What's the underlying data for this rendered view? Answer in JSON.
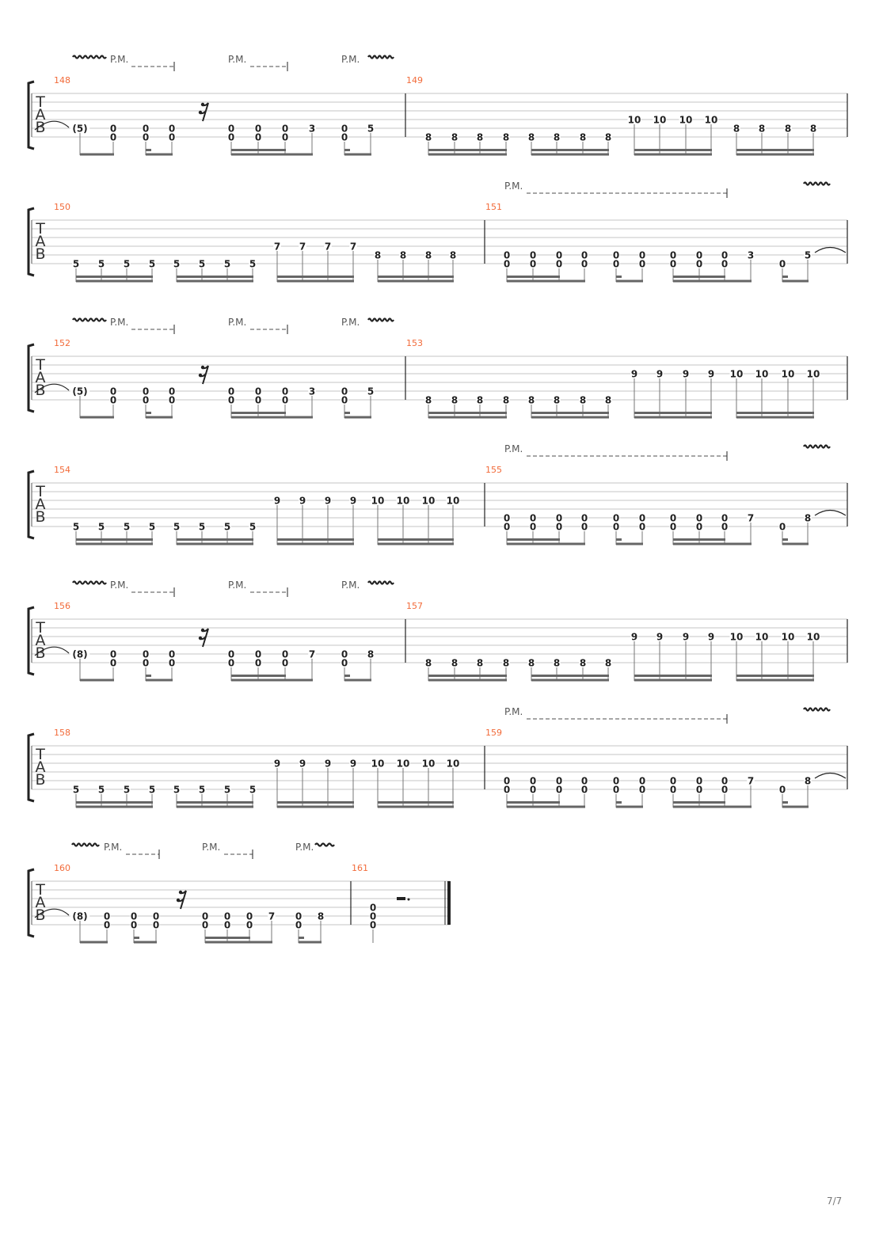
{
  "document": {
    "type": "guitar tablature",
    "page_number": "7/7"
  },
  "colors": {
    "measure_number": "#f26b3a",
    "staff_line": "#c4c4c4",
    "note": "#222222",
    "beam": "#666666"
  },
  "clef_letters": [
    "T",
    "A",
    "B"
  ],
  "annotation_label": "P.M.",
  "systems": [
    {
      "measures": [
        "148",
        "149"
      ]
    },
    {
      "measures": [
        "150",
        "151"
      ]
    },
    {
      "measures": [
        "152",
        "153"
      ]
    },
    {
      "measures": [
        "154",
        "155"
      ]
    },
    {
      "measures": [
        "156",
        "157"
      ]
    },
    {
      "measures": [
        "158",
        "159"
      ]
    },
    {
      "measures": [
        "160",
        "161"
      ]
    }
  ],
  "measures": {
    "148": [
      {
        "5": "(5)"
      },
      {
        "5": "0",
        "6": "0"
      },
      {
        "5": "0",
        "6": "0"
      },
      {
        "5": "0",
        "6": "0"
      },
      {
        "rest": "16th"
      },
      {
        "5": "0",
        "6": "0"
      },
      {
        "5": "0",
        "6": "0"
      },
      {
        "5": "0",
        "6": "0"
      },
      {
        "5": "3"
      },
      {
        "5": "0",
        "6": "0"
      },
      {
        "5": "5"
      }
    ],
    "149": [
      {
        "6": "8"
      },
      {
        "6": "8"
      },
      {
        "6": "8"
      },
      {
        "6": "8"
      },
      {
        "6": "8"
      },
      {
        "6": "8"
      },
      {
        "6": "8"
      },
      {
        "6": "8"
      },
      {
        "4": "10"
      },
      {
        "4": "10"
      },
      {
        "4": "10"
      },
      {
        "4": "10"
      },
      {
        "5": "8"
      },
      {
        "5": "8"
      },
      {
        "5": "8"
      },
      {
        "5": "8"
      }
    ],
    "150": [
      {
        "6": "5"
      },
      {
        "6": "5"
      },
      {
        "6": "5"
      },
      {
        "6": "5"
      },
      {
        "6": "5"
      },
      {
        "6": "5"
      },
      {
        "6": "5"
      },
      {
        "6": "5"
      },
      {
        "4": "7"
      },
      {
        "4": "7"
      },
      {
        "4": "7"
      },
      {
        "4": "7"
      },
      {
        "5": "8"
      },
      {
        "5": "8"
      },
      {
        "5": "8"
      },
      {
        "5": "8"
      }
    ],
    "151": [
      {
        "5": "0",
        "6": "0"
      },
      {
        "5": "0",
        "6": "0"
      },
      {
        "5": "0",
        "6": "0"
      },
      {
        "5": "0",
        "6": "0"
      },
      {
        "5": "0",
        "6": "0"
      },
      {
        "5": "0",
        "6": "0"
      },
      {
        "5": "0",
        "6": "0"
      },
      {
        "5": "0",
        "6": "0"
      },
      {
        "5": "0",
        "6": "0"
      },
      {
        "5": "3"
      },
      {
        "6": "0"
      },
      {
        "5": "5"
      }
    ],
    "152": [
      {
        "5": "(5)"
      },
      {
        "5": "0",
        "6": "0"
      },
      {
        "5": "0",
        "6": "0"
      },
      {
        "5": "0",
        "6": "0"
      },
      {
        "rest": "16th"
      },
      {
        "5": "0",
        "6": "0"
      },
      {
        "5": "0",
        "6": "0"
      },
      {
        "5": "0",
        "6": "0"
      },
      {
        "5": "3"
      },
      {
        "5": "0",
        "6": "0"
      },
      {
        "5": "5"
      }
    ],
    "153": [
      {
        "6": "8"
      },
      {
        "6": "8"
      },
      {
        "6": "8"
      },
      {
        "6": "8"
      },
      {
        "6": "8"
      },
      {
        "6": "8"
      },
      {
        "6": "8"
      },
      {
        "6": "8"
      },
      {
        "3": "9"
      },
      {
        "3": "9"
      },
      {
        "3": "9"
      },
      {
        "3": "9"
      },
      {
        "3": "10"
      },
      {
        "3": "10"
      },
      {
        "3": "10"
      },
      {
        "3": "10"
      }
    ],
    "154": [
      {
        "6": "5"
      },
      {
        "6": "5"
      },
      {
        "6": "5"
      },
      {
        "6": "5"
      },
      {
        "6": "5"
      },
      {
        "6": "5"
      },
      {
        "6": "5"
      },
      {
        "6": "5"
      },
      {
        "3": "9"
      },
      {
        "3": "9"
      },
      {
        "3": "9"
      },
      {
        "3": "9"
      },
      {
        "3": "10"
      },
      {
        "3": "10"
      },
      {
        "3": "10"
      },
      {
        "3": "10"
      }
    ],
    "155": [
      {
        "5": "0",
        "6": "0"
      },
      {
        "5": "0",
        "6": "0"
      },
      {
        "5": "0",
        "6": "0"
      },
      {
        "5": "0",
        "6": "0"
      },
      {
        "5": "0",
        "6": "0"
      },
      {
        "5": "0",
        "6": "0"
      },
      {
        "5": "0",
        "6": "0"
      },
      {
        "5": "0",
        "6": "0"
      },
      {
        "5": "0",
        "6": "0"
      },
      {
        "5": "7"
      },
      {
        "6": "0"
      },
      {
        "5": "8"
      }
    ],
    "156": [
      {
        "5": "(8)"
      },
      {
        "5": "0",
        "6": "0"
      },
      {
        "5": "0",
        "6": "0"
      },
      {
        "5": "0",
        "6": "0"
      },
      {
        "rest": "16th"
      },
      {
        "5": "0",
        "6": "0"
      },
      {
        "5": "0",
        "6": "0"
      },
      {
        "5": "0",
        "6": "0"
      },
      {
        "5": "7"
      },
      {
        "5": "0",
        "6": "0"
      },
      {
        "5": "8"
      }
    ],
    "157": [
      {
        "6": "8"
      },
      {
        "6": "8"
      },
      {
        "6": "8"
      },
      {
        "6": "8"
      },
      {
        "6": "8"
      },
      {
        "6": "8"
      },
      {
        "6": "8"
      },
      {
        "6": "8"
      },
      {
        "3": "9"
      },
      {
        "3": "9"
      },
      {
        "3": "9"
      },
      {
        "3": "9"
      },
      {
        "3": "10"
      },
      {
        "3": "10"
      },
      {
        "3": "10"
      },
      {
        "3": "10"
      }
    ],
    "158": [
      {
        "6": "5"
      },
      {
        "6": "5"
      },
      {
        "6": "5"
      },
      {
        "6": "5"
      },
      {
        "6": "5"
      },
      {
        "6": "5"
      },
      {
        "6": "5"
      },
      {
        "6": "5"
      },
      {
        "3": "9"
      },
      {
        "3": "9"
      },
      {
        "3": "9"
      },
      {
        "3": "9"
      },
      {
        "3": "10"
      },
      {
        "3": "10"
      },
      {
        "3": "10"
      },
      {
        "3": "10"
      }
    ],
    "159": [
      {
        "5": "0",
        "6": "0"
      },
      {
        "5": "0",
        "6": "0"
      },
      {
        "5": "0",
        "6": "0"
      },
      {
        "5": "0",
        "6": "0"
      },
      {
        "5": "0",
        "6": "0"
      },
      {
        "5": "0",
        "6": "0"
      },
      {
        "5": "0",
        "6": "0"
      },
      {
        "5": "0",
        "6": "0"
      },
      {
        "5": "0",
        "6": "0"
      },
      {
        "5": "7"
      },
      {
        "6": "0"
      },
      {
        "5": "8"
      }
    ],
    "160": [
      {
        "5": "(8)"
      },
      {
        "5": "0",
        "6": "0"
      },
      {
        "5": "0",
        "6": "0"
      },
      {
        "5": "0",
        "6": "0"
      },
      {
        "rest": "16th"
      },
      {
        "5": "0",
        "6": "0"
      },
      {
        "5": "0",
        "6": "0"
      },
      {
        "5": "0",
        "6": "0"
      },
      {
        "5": "7"
      },
      {
        "5": "0",
        "6": "0"
      },
      {
        "5": "8"
      }
    ],
    "161": [
      {
        "4": "0",
        "5": "0",
        "6": "0"
      },
      {
        "rest": "dotted-half"
      }
    ]
  }
}
